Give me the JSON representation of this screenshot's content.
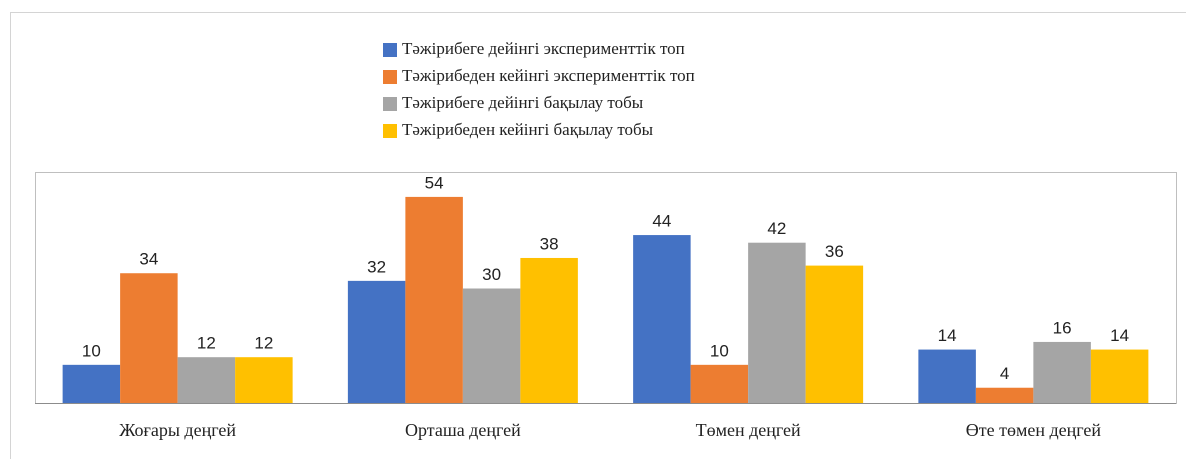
{
  "chart_data": {
    "type": "bar",
    "categories": [
      "Жоғары деңгей",
      "Орташа деңгей",
      "Төмен деңгей",
      "Өте төмен деңгей"
    ],
    "series": [
      {
        "name": "Тәжірибеге дейінгі эксперименттік топ",
        "color": "#4472c4",
        "values": [
          10,
          32,
          44,
          14
        ]
      },
      {
        "name": "Тәжірибеден кейінгі эксперименттік топ",
        "color": "#ed7d31",
        "values": [
          34,
          54,
          10,
          4
        ]
      },
      {
        "name": "Тәжірибеге дейінгі бақылау тобы",
        "color": "#a5a5a5",
        "values": [
          12,
          30,
          42,
          16
        ]
      },
      {
        "name": "Тәжірибеден кейінгі бақылау тобы",
        "color": "#ffc000",
        "values": [
          12,
          38,
          36,
          14
        ]
      }
    ],
    "ylim": [
      0,
      60
    ],
    "legend": "top"
  }
}
